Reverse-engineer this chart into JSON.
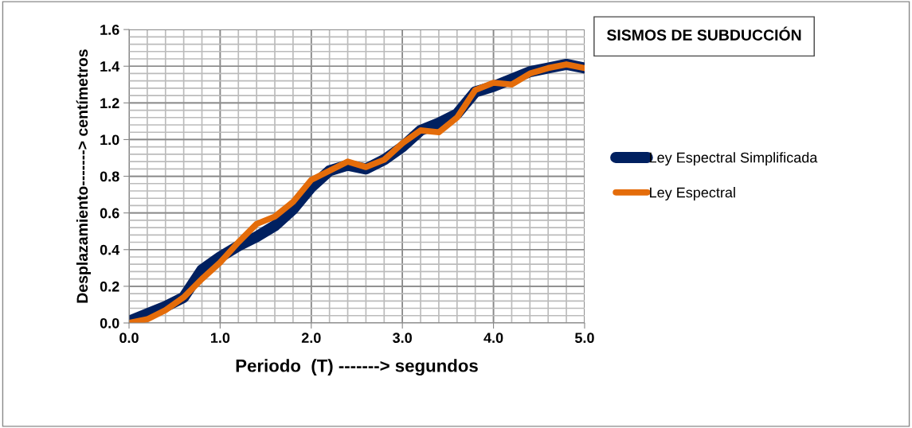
{
  "chart_data": {
    "type": "line",
    "title": "SISMOS DE SUBDUCCIÓN",
    "xlabel": "Periodo  (T) -------> segundos",
    "ylabel": "Desplazamiento-------> centímetros",
    "x": [
      0,
      0.2,
      0.4,
      0.6,
      0.8,
      1.0,
      1.2,
      1.4,
      1.6,
      1.8,
      2.0,
      2.2,
      2.4,
      2.6,
      2.8,
      3.0,
      3.2,
      3.4,
      3.6,
      3.8,
      4.0,
      4.2,
      4.4,
      4.6,
      4.8,
      5.0
    ],
    "series": [
      {
        "name": "Ley Espectral Simplificada",
        "color": "#002060",
        "values": [
          0.01,
          0.05,
          0.09,
          0.14,
          0.29,
          0.36,
          0.42,
          0.47,
          0.53,
          0.62,
          0.74,
          0.83,
          0.86,
          0.84,
          0.89,
          0.96,
          1.05,
          1.09,
          1.14,
          1.26,
          1.29,
          1.33,
          1.37,
          1.39,
          1.41,
          1.39
        ]
      },
      {
        "name": "Ley Espectral",
        "color": "#e46c0a",
        "values": [
          0.0,
          0.02,
          0.07,
          0.14,
          0.24,
          0.33,
          0.44,
          0.54,
          0.58,
          0.66,
          0.78,
          0.83,
          0.88,
          0.85,
          0.89,
          0.98,
          1.05,
          1.04,
          1.12,
          1.27,
          1.31,
          1.3,
          1.36,
          1.39,
          1.41,
          1.39
        ]
      }
    ],
    "xlim": [
      0,
      5
    ],
    "xticks": [
      {
        "value": 0,
        "label": "0.0"
      },
      {
        "value": 1,
        "label": "1.0"
      },
      {
        "value": 2,
        "label": "2.0"
      },
      {
        "value": 3,
        "label": "3.0"
      },
      {
        "value": 4,
        "label": "4.0"
      },
      {
        "value": 5,
        "label": "5.0"
      }
    ],
    "ylim": [
      0,
      1.6
    ],
    "yticks": [
      {
        "value": 0,
        "label": "0.0"
      },
      {
        "value": 0.2,
        "label": "0.2"
      },
      {
        "value": 0.4,
        "label": "0.4"
      },
      {
        "value": 0.6,
        "label": "0.6"
      },
      {
        "value": 0.8,
        "label": "0.8"
      },
      {
        "value": 1.0,
        "label": "1.0"
      },
      {
        "value": 1.2,
        "label": "1.2"
      },
      {
        "value": 1.4,
        "label": "1.4"
      },
      {
        "value": 1.6,
        "label": "1.6"
      }
    ],
    "grid": true,
    "legend": "right",
    "marker": "none",
    "line_style": "solid"
  }
}
